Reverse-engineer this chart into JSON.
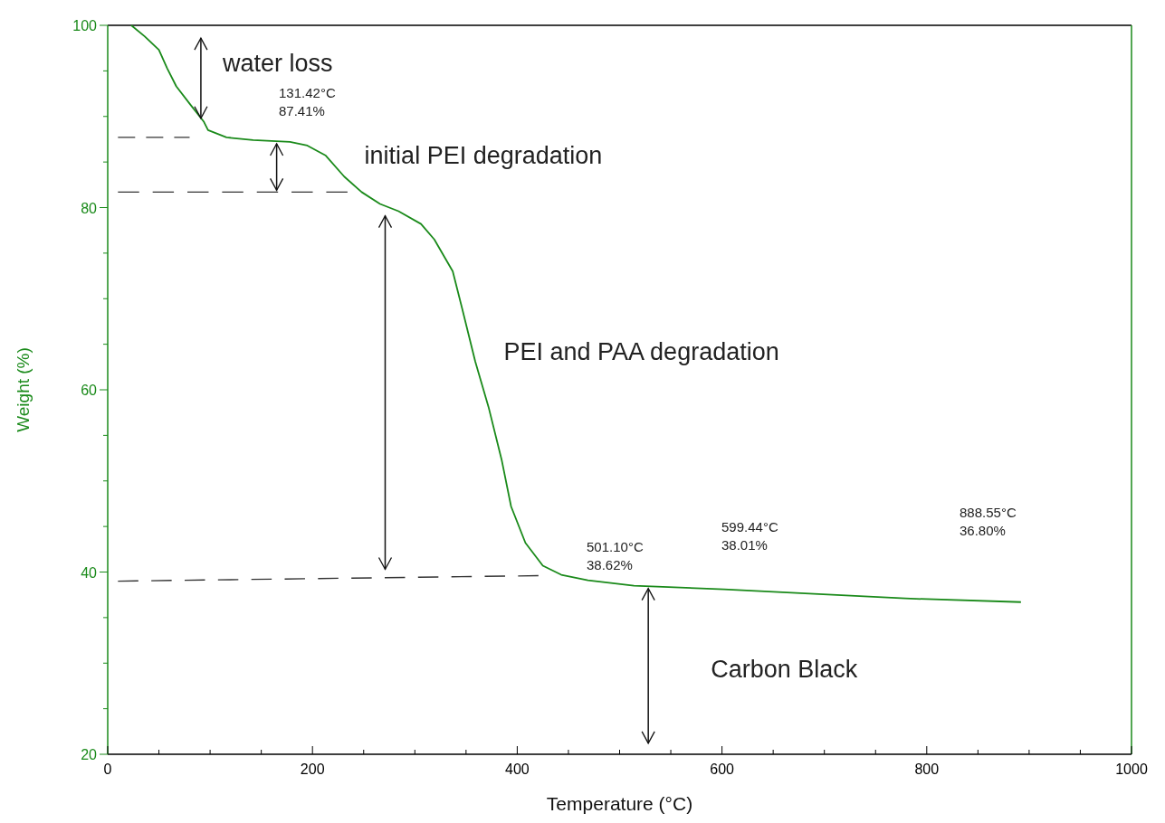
{
  "chart_data": {
    "type": "line",
    "xlabel": "Temperature (°C)",
    "ylabel": "Weight (%)",
    "xlim": [
      0,
      1000
    ],
    "ylim": [
      20,
      100
    ],
    "xticks": [
      0,
      {
        "value": 50,
        "label": null
      },
      {
        "value": 100,
        "label": null
      },
      {
        "value": 150,
        "label": null
      },
      200,
      {
        "value": 250,
        "label": null
      },
      {
        "value": 300,
        "label": null
      },
      {
        "value": 350,
        "label": null
      },
      400,
      {
        "value": 450,
        "label": null
      },
      {
        "value": 500,
        "label": null
      },
      {
        "value": 550,
        "label": null
      },
      600,
      {
        "value": 650,
        "label": null
      },
      {
        "value": 700,
        "label": null
      },
      {
        "value": 750,
        "label": null
      },
      800,
      {
        "value": 850,
        "label": null
      },
      {
        "value": 900,
        "label": null
      },
      {
        "value": 950,
        "label": null
      },
      1000
    ],
    "yticks": [
      20,
      {
        "value": 25,
        "label": null
      },
      {
        "value": 30,
        "label": null
      },
      {
        "value": 35,
        "label": null
      },
      40,
      {
        "value": 45,
        "label": null
      },
      {
        "value": 50,
        "label": null
      },
      {
        "value": 55,
        "label": null
      },
      60,
      {
        "value": 65,
        "label": null
      },
      {
        "value": 70,
        "label": null
      },
      {
        "value": 75,
        "label": null
      },
      80,
      {
        "value": 85,
        "label": null
      },
      {
        "value": 90,
        "label": null
      },
      {
        "value": 95,
        "label": null
      },
      100
    ],
    "grid": false,
    "marker": "none",
    "line_style": "solid",
    "series": [
      {
        "color": "#1a8a1a",
        "x": [
          23,
          36,
          50,
          58,
          67,
          80,
          94,
          98,
          116,
          142,
          178,
          195,
          213,
          231,
          248,
          266,
          284,
          306,
          319,
          337,
          346,
          359,
          372,
          385,
          394,
          408,
          425,
          443,
          469,
          514,
          602,
          690,
          779,
          892
        ],
        "values": [
          100,
          98.8,
          97.3,
          95.3,
          93.3,
          91.4,
          89.4,
          88.5,
          87.7,
          87.4,
          87.2,
          86.8,
          85.7,
          83.4,
          81.7,
          80.4,
          79.6,
          78.2,
          76.5,
          73.0,
          69.0,
          63.1,
          58.1,
          52.2,
          47.2,
          43.2,
          40.7,
          39.7,
          39.1,
          38.5,
          38.1,
          37.6,
          37.1,
          36.7
        ]
      },
      {
        "color": "#333333",
        "line_style": "dashed",
        "x": [
          10,
          80
        ],
        "values": [
          87.7,
          87.7
        ]
      },
      {
        "color": "#333333",
        "line_style": "dashed",
        "x": [
          10,
          235
        ],
        "values": [
          81.7,
          81.7
        ]
      },
      {
        "color": "#333333",
        "line_style": "dashed",
        "x": [
          10,
          421
        ],
        "values": [
          39.0,
          39.6
        ]
      }
    ],
    "annotations": [
      {
        "text": "water loss",
        "x": 91,
        "y": 89.8
      },
      "initial PEI degradation",
      "PEI and PAA degradation",
      "Carbon Black",
      "131.42°C\n87.41%",
      "501.10°C\n38.62%",
      "599.44°C\n38.01%",
      "888.55°C\n36.80%"
    ]
  }
}
